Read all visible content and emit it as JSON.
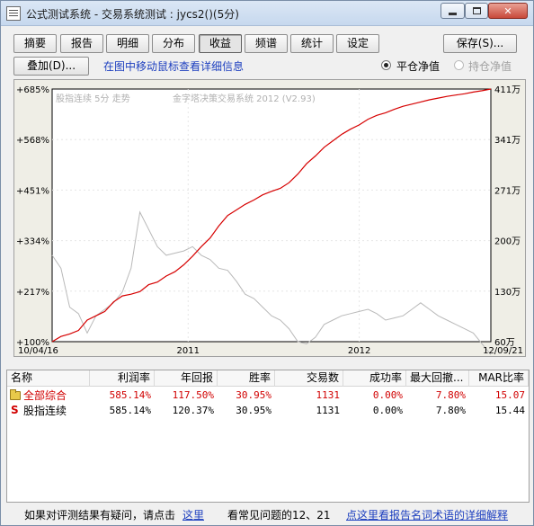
{
  "window": {
    "title": "公式测试系统 - 交易系统测试 : jycs2()(5分)"
  },
  "tabs": [
    {
      "label": "摘要"
    },
    {
      "label": "报告"
    },
    {
      "label": "明细"
    },
    {
      "label": "分布"
    },
    {
      "label": "收益",
      "active": true
    },
    {
      "label": "频谱"
    },
    {
      "label": "统计"
    },
    {
      "label": "设定"
    }
  ],
  "toolbar": {
    "save_label": "保存(S)...",
    "overlay_label": "叠加(D)...",
    "hint": "在图中移动鼠标查看详细信息"
  },
  "options": {
    "flat_label": "平仓净值",
    "hold_label": "持仓净值",
    "selected": "平仓净值"
  },
  "chart_data": {
    "type": "line",
    "overlay_title_left": "股指连续 5分 走势",
    "overlay_title_right": "金字塔决策交易系统 2012 (V2.93)",
    "left_ticks": [
      "+685%",
      "+568%",
      "+451%",
      "+334%",
      "+217%",
      "+100%"
    ],
    "right_ticks": [
      "411万",
      "341万",
      "271万",
      "200万",
      "130万",
      "60万"
    ],
    "x_ticks": [
      "10/04/16",
      "2011",
      "2012",
      "12/09/21"
    ],
    "left_ylim": [
      100,
      685
    ],
    "right_ylim": [
      60,
      411
    ],
    "colors": {
      "equity": "#d60000",
      "price": "#b9b9b9",
      "background": "#ffffff"
    },
    "series": [
      {
        "id": "equity",
        "x": [
          0,
          0.02,
          0.04,
          0.06,
          0.08,
          0.1,
          0.12,
          0.14,
          0.16,
          0.18,
          0.2,
          0.22,
          0.24,
          0.26,
          0.28,
          0.3,
          0.32,
          0.34,
          0.36,
          0.38,
          0.4,
          0.42,
          0.44,
          0.46,
          0.48,
          0.5,
          0.52,
          0.54,
          0.56,
          0.58,
          0.6,
          0.62,
          0.64,
          0.66,
          0.68,
          0.7,
          0.72,
          0.74,
          0.76,
          0.78,
          0.8,
          0.82,
          0.84,
          0.86,
          0.88,
          0.9,
          0.92,
          0.94,
          0.96,
          0.98,
          1.0
        ],
        "values": [
          100,
          112,
          118,
          126,
          150,
          160,
          170,
          192,
          206,
          210,
          216,
          232,
          238,
          252,
          262,
          278,
          298,
          320,
          340,
          368,
          392,
          405,
          418,
          428,
          440,
          448,
          455,
          468,
          488,
          512,
          530,
          550,
          565,
          580,
          592,
          602,
          615,
          624,
          630,
          638,
          645,
          650,
          655,
          660,
          664,
          668,
          671,
          674,
          678,
          681,
          685
        ]
      },
      {
        "id": "price",
        "x": [
          0,
          0.02,
          0.04,
          0.06,
          0.08,
          0.1,
          0.12,
          0.14,
          0.16,
          0.18,
          0.2,
          0.22,
          0.24,
          0.26,
          0.28,
          0.3,
          0.32,
          0.34,
          0.36,
          0.38,
          0.4,
          0.42,
          0.44,
          0.46,
          0.48,
          0.5,
          0.52,
          0.54,
          0.56,
          0.58,
          0.6,
          0.62,
          0.64,
          0.66,
          0.68,
          0.7,
          0.72,
          0.74,
          0.76,
          0.78,
          0.8,
          0.82,
          0.84,
          0.86,
          0.88,
          0.9,
          0.92,
          0.94,
          0.96,
          0.98,
          1.0
        ],
        "values": [
          300,
          270,
          180,
          165,
          120,
          160,
          175,
          190,
          215,
          270,
          400,
          360,
          320,
          300,
          305,
          310,
          320,
          300,
          290,
          270,
          265,
          240,
          210,
          200,
          180,
          160,
          150,
          130,
          100,
          95,
          110,
          140,
          150,
          160,
          165,
          170,
          175,
          165,
          150,
          155,
          160,
          175,
          190,
          175,
          160,
          150,
          140,
          130,
          120,
          95,
          70
        ]
      }
    ]
  },
  "table": {
    "headers": [
      "名称",
      "利润率",
      "年回报",
      "胜率",
      "交易数",
      "成功率",
      "最大回撤...",
      "MAR比率"
    ],
    "rows": [
      {
        "name": "全部综合",
        "cells": [
          "585.14%",
          "117.50%",
          "30.95%",
          "1131",
          "0.00%",
          "7.80%",
          "15.07"
        ],
        "icon": "folder-icon",
        "color": "red"
      },
      {
        "name": "股指连续",
        "cells": [
          "585.14%",
          "120.37%",
          "30.95%",
          "1131",
          "0.00%",
          "7.80%",
          "15.44"
        ],
        "icon": "s-icon",
        "color": "black"
      }
    ]
  },
  "footer": {
    "question_text": "如果对评测结果有疑问，请点击",
    "here_link": "这里",
    "faq_text": "看常见问题的12、21",
    "glossary_link": "点这里看报告名词术语的详细解释"
  }
}
